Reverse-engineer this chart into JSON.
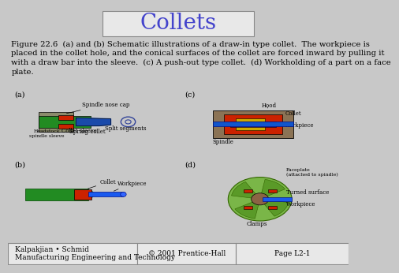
{
  "title": "Collets",
  "title_color": "#4444cc",
  "title_fontsize": 20,
  "background_color": "#c8c8c8",
  "inner_bg_color": "#d8d8d8",
  "caption": "Figure 22.6  (a) and (b) Schematic illustrations of a draw-in type collet.  The workpiece is\nplaced in the collet hole, and the conical surfaces of the collet are forced inward by pulling it\nwith a draw bar into the sleeve.  (c) A push-out type collet.  (d) Workholding of a part on a face\nplate.",
  "caption_fontsize": 7.2,
  "footer_left": "Kalpakjian • Schmid\nManufacturing Engineering and Technology",
  "footer_center": "© 2001 Prentice-Hall",
  "footer_right": "Page L2-1",
  "footer_fontsize": 6.5,
  "label_a": "(a)",
  "label_b": "(b)",
  "label_c": "(c)",
  "label_d": "(d)",
  "label_fontsize": 7,
  "border_color": "#999999",
  "title_box_color": "#e8e8e8"
}
